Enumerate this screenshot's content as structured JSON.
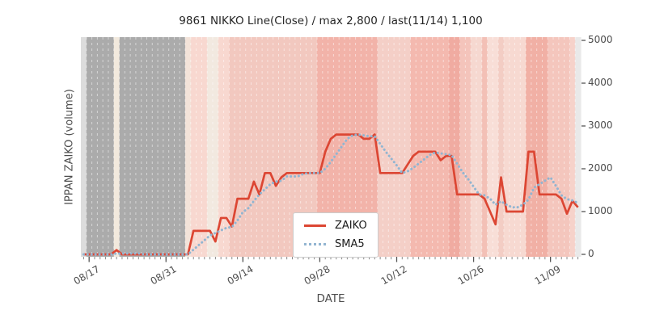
{
  "chart_data": {
    "type": "line",
    "title": "9861 NIKKO Line(Close) / max 2,800 / last(11/14) 1,100",
    "xlabel": "DATE",
    "ylabel": "IPPAN ZAIKO (volume)",
    "ylim": [
      0,
      5000
    ],
    "yticks": [
      0,
      1000,
      2000,
      3000,
      4000,
      5000
    ],
    "grid": "vertical-dashed-per-day",
    "legend_position": "lower-center",
    "x_axis": {
      "n_days": 91,
      "start_date": "08/16",
      "end_date": "11/14",
      "tick_labels": [
        "08/17",
        "08/31",
        "09/14",
        "09/28",
        "10/12",
        "10/26",
        "11/09"
      ],
      "tick_day_indices": [
        1,
        15,
        29,
        43,
        57,
        71,
        85
      ]
    },
    "series": [
      {
        "name": "ZAIKO",
        "color": "#dc4633",
        "line_style": "solid",
        "values": [
          0,
          0,
          0,
          0,
          0,
          0,
          100,
          0,
          0,
          0,
          0,
          0,
          0,
          0,
          0,
          0,
          0,
          0,
          0,
          0,
          550,
          550,
          550,
          550,
          300,
          850,
          850,
          650,
          1300,
          1300,
          1300,
          1700,
          1400,
          1900,
          1900,
          1600,
          1800,
          1900,
          1900,
          1900,
          1900,
          1900,
          1900,
          1900,
          2400,
          2700,
          2800,
          2800,
          2800,
          2800,
          2800,
          2700,
          2700,
          2800,
          1900,
          1900,
          1900,
          1900,
          1900,
          2100,
          2300,
          2400,
          2400,
          2400,
          2400,
          2200,
          2300,
          2300,
          1400,
          1400,
          1400,
          1400,
          1400,
          1300,
          1000,
          700,
          1800,
          1000,
          1000,
          1000,
          1000,
          2400,
          2400,
          1400,
          1400,
          1400,
          1400,
          1300,
          950,
          1250,
          1100
        ]
      },
      {
        "name": "SMA5",
        "color": "#92b5d1",
        "line_style": "dotted",
        "derived_from": "5-day moving average of ZAIKO"
      }
    ],
    "background": {
      "gridline_color": "rgba(255,255,255,0.5)",
      "band_colors": [
        "#dcdcdc",
        "#ababab",
        "#ababab",
        "#ababab",
        "#ababab",
        "#ababab",
        "#f2e9dd",
        "#ababab",
        "#ababab",
        "#ababab",
        "#ababab",
        "#ababab",
        "#ababab",
        "#ababab",
        "#ababab",
        "#ababab",
        "#ababab",
        "#ababab",
        "#ababab",
        "#f3e3d9",
        "#f8d8d0",
        "#f8d8d0",
        "#f8d8d0",
        "#f2e9e0",
        "#f2e9e0",
        "#f8d8d0",
        "#f8d8d0",
        "#f2c8bf",
        "#f2c8bf",
        "#f2c8bf",
        "#f2c8bf",
        "#f2c8bf",
        "#f2c8bf",
        "#f2c8bf",
        "#f2c8bf",
        "#f2c8bf",
        "#f2c8bf",
        "#f2c8bf",
        "#f2c8bf",
        "#f2c8bf",
        "#f2c8bf",
        "#f2c8bf",
        "#f2c8bf",
        "#f2b3a9",
        "#f2b3a9",
        "#f2b3a9",
        "#f2b3a9",
        "#f2b3a9",
        "#f2b3a9",
        "#f2b3a9",
        "#f2b3a9",
        "#f2b3a9",
        "#f2b3a9",
        "#f2b3a9",
        "#f4cfc7",
        "#f4cfc7",
        "#f4cfc7",
        "#f4cfc7",
        "#f4cfc7",
        "#f4cfc7",
        "#f4b9af",
        "#f4b9af",
        "#f4b9af",
        "#f4b9af",
        "#f4b9af",
        "#f4b9af",
        "#f4b9af",
        "#f0aba1",
        "#f0aba1",
        "#f4c4bb",
        "#f4c4bb",
        "#f6d8d0",
        "#f6d8d0",
        "#f3c0b6",
        "#f8ded7",
        "#f8ded7",
        "#f3cdc4",
        "#f7d9d1",
        "#f7d9d1",
        "#f7d9d1",
        "#f7d9d1",
        "#f1b0a5",
        "#f1b0a5",
        "#f1b0a5",
        "#f1b0a5",
        "#f4c6bd",
        "#f4c6bd",
        "#f4c6bd",
        "#f4c6bd",
        "#f6d2ca",
        "#e9e9e9"
      ]
    },
    "legend": {
      "items": [
        "ZAIKO",
        "SMA5"
      ]
    }
  }
}
